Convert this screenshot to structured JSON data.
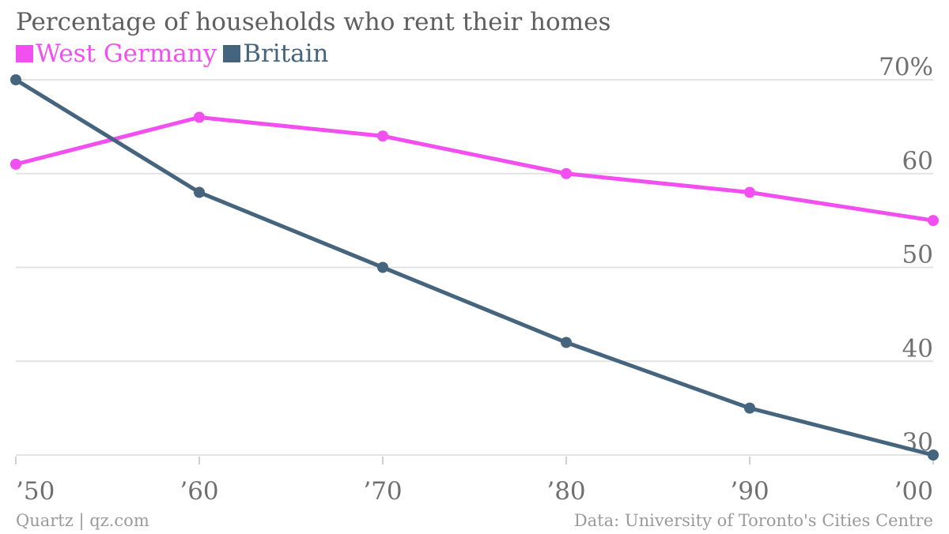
{
  "chart_data": {
    "type": "line",
    "title": "Percentage of households who rent their homes",
    "x": [
      "’50",
      "’60",
      "’70",
      "’80",
      "’90",
      "’00"
    ],
    "series": [
      {
        "name": "West Germany",
        "color": "#f24ff0",
        "values": [
          61,
          66,
          64,
          60,
          58,
          55
        ]
      },
      {
        "name": "Britain",
        "color": "#45647d",
        "values": [
          70,
          58,
          50,
          42,
          35,
          30
        ]
      }
    ],
    "ylim": [
      30,
      70
    ],
    "yticks": [
      {
        "value": 70,
        "label": "70%"
      },
      {
        "value": 60,
        "label": "60"
      },
      {
        "value": 50,
        "label": "50"
      },
      {
        "value": 40,
        "label": "40"
      },
      {
        "value": 30,
        "label": "30"
      }
    ],
    "xlabel": "",
    "ylabel": "",
    "grid": true,
    "legend": "top-left"
  },
  "footer": {
    "source_left": "Quartz | qz.com",
    "source_right": "Data: University of Toronto's Cities Centre"
  }
}
